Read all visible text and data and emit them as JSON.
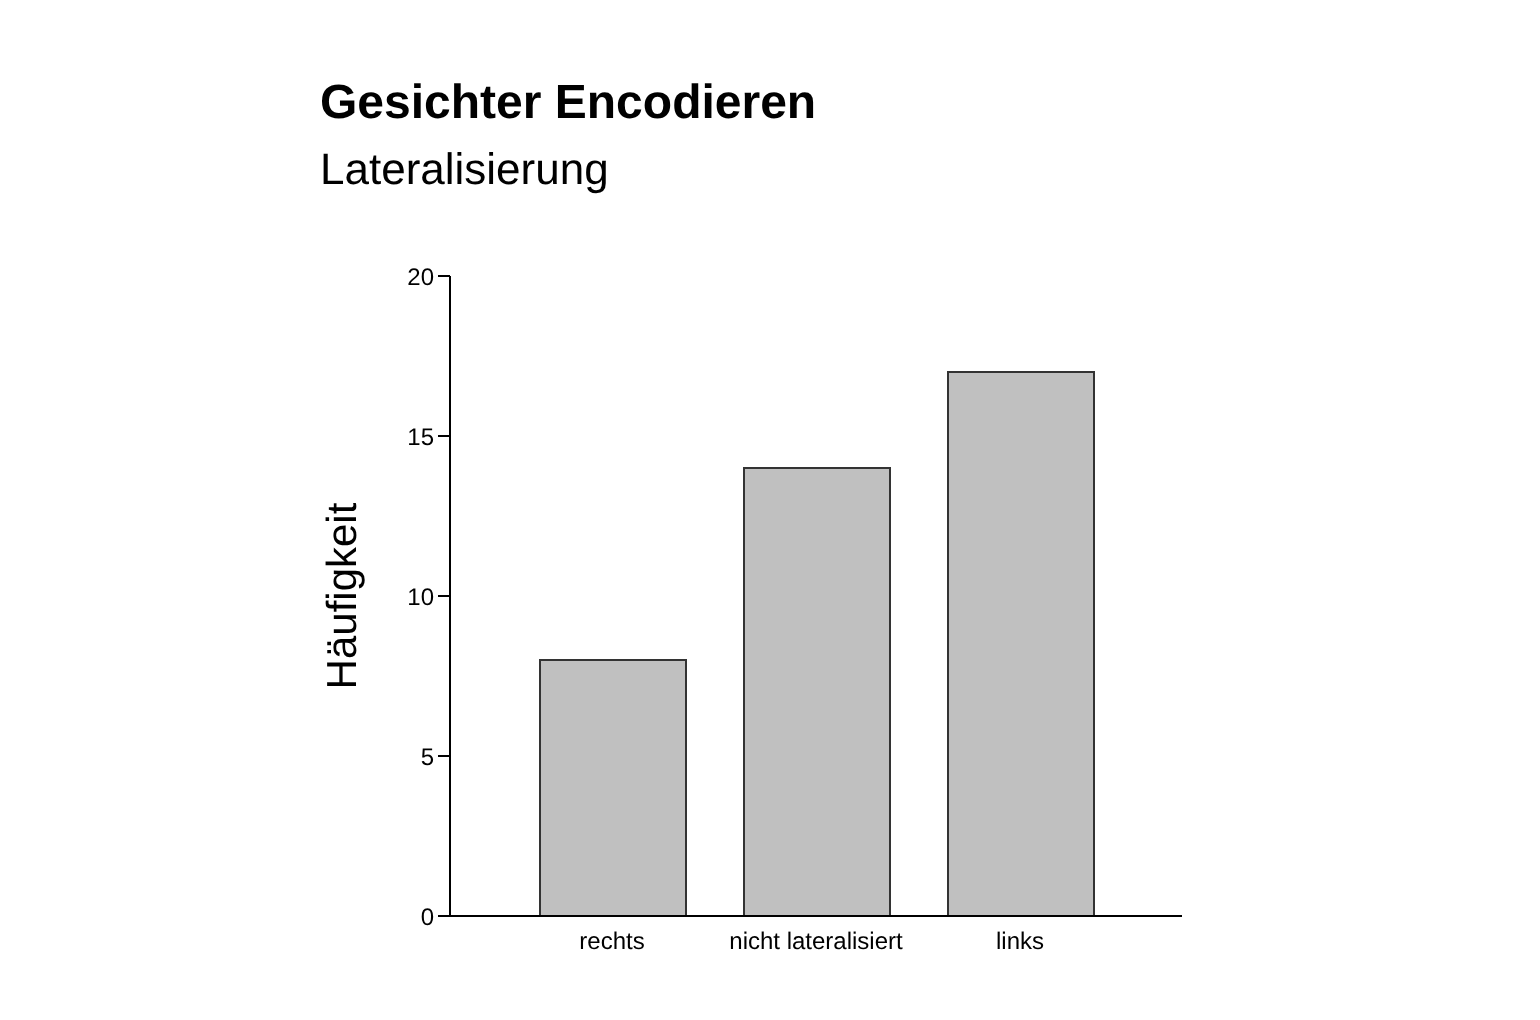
{
  "chart_data": {
    "type": "bar",
    "title": "Gesichter Encodieren",
    "subtitle": "Lateralisierung",
    "ylabel": "Häufigkeit",
    "categories": [
      "rechts",
      "nicht lateralisiert",
      "links"
    ],
    "values": [
      8,
      14,
      17
    ],
    "color": "#c0c0c0",
    "ylim": [
      0,
      20
    ],
    "yticks": [
      0,
      5,
      10,
      15,
      20
    ],
    "grid": false,
    "legend": false
  }
}
